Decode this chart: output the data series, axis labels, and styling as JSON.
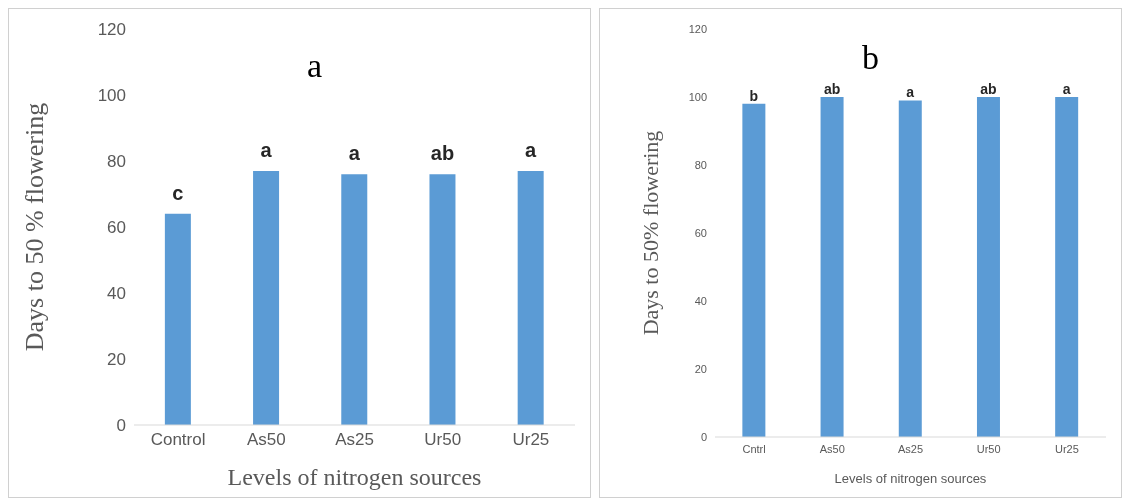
{
  "chart_data": [
    {
      "type": "bar",
      "title": "a",
      "xlabel": "Levels of nitrogen sources",
      "ylabel": "Days to 50 % flowering",
      "categories": [
        "Control",
        "As50",
        "As25",
        "Ur50",
        "Ur25"
      ],
      "values": [
        64,
        77,
        76,
        76,
        77
      ],
      "value_labels": [
        "c",
        "a",
        "a",
        "ab",
        "a"
      ],
      "color": "#5b9bd5",
      "ylim": [
        0,
        120
      ],
      "yticks": [
        0,
        20,
        40,
        60,
        80,
        100,
        120
      ],
      "grid": false
    },
    {
      "type": "bar",
      "title": "b",
      "xlabel": "Levels of  nitrogen sources",
      "ylabel": "Days to 50% flowering",
      "categories": [
        "Cntrl",
        "As50",
        "As25",
        "Ur50",
        "Ur25"
      ],
      "values": [
        98,
        100,
        99,
        100,
        100
      ],
      "value_labels": [
        "b",
        "ab",
        "a",
        "ab",
        "a"
      ],
      "color": "#5b9bd5",
      "ylim": [
        0,
        120
      ],
      "yticks": [
        0,
        20,
        40,
        60,
        80,
        100,
        120
      ],
      "grid": false
    }
  ]
}
